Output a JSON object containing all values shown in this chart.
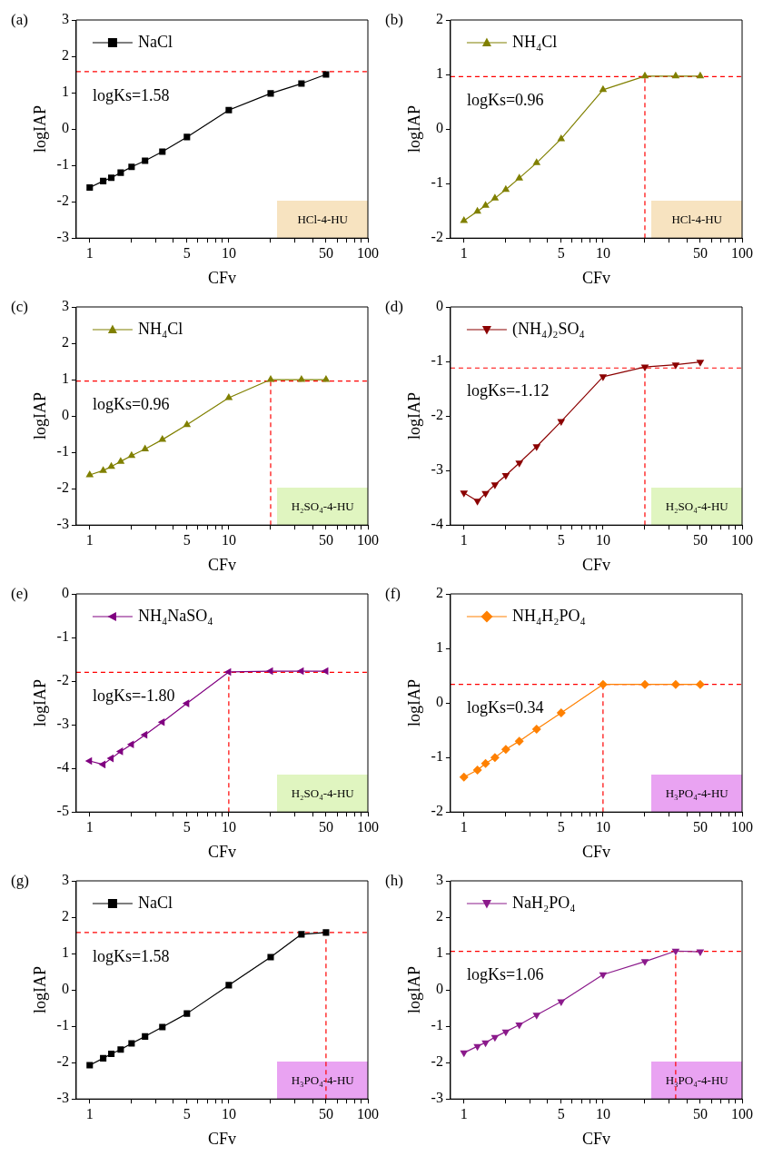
{
  "chart_data": [
    {
      "type": "line",
      "title": "(a)",
      "xlabel": "CFv",
      "ylabel": "logIAP",
      "log": "x",
      "xlim": [
        0.8,
        100
      ],
      "ylim": [
        -3,
        3
      ],
      "xticks": [
        1,
        {
          "value": 2,
          "label": null
        },
        {
          "value": 3,
          "label": null
        },
        {
          "value": 4,
          "label": null
        },
        5,
        {
          "value": 6,
          "label": null
        },
        {
          "value": 7,
          "label": null
        },
        {
          "value": 8,
          "label": null
        },
        {
          "value": 9,
          "label": null
        },
        10,
        {
          "value": 20,
          "label": null
        },
        {
          "value": 30,
          "label": null
        },
        {
          "value": 40,
          "label": null
        },
        50,
        {
          "value": 60,
          "label": null
        },
        {
          "value": 70,
          "label": null
        },
        {
          "value": 80,
          "label": null
        },
        {
          "value": 90,
          "label": null
        },
        100
      ],
      "yticks": [
        -3,
        -2,
        -1,
        0,
        1,
        2,
        3
      ],
      "grid": false,
      "legend": "top left",
      "marker": "square",
      "series": [
        {
          "name": "NaCl",
          "color": "#000000",
          "x": [
            1,
            1.25,
            1.43,
            1.67,
            2,
            2.5,
            3.33,
            5,
            10,
            20,
            33.3,
            50
          ],
          "values": [
            -1.61,
            -1.43,
            -1.34,
            -1.2,
            -1.04,
            -0.87,
            -0.62,
            -0.22,
            0.52,
            0.98,
            1.25,
            1.5
          ]
        }
      ],
      "ref_lines": [
        {
          "axis": "y",
          "value": 1.58,
          "color": "#ff0000",
          "line_style": "dashed"
        }
      ],
      "annotations": [
        "logKs=1.58",
        "HCl-4-HU"
      ]
    },
    {
      "type": "line",
      "title": "(b)",
      "xlabel": "CFv",
      "ylabel": "logIAP",
      "log": "x",
      "xlim": [
        0.8,
        100
      ],
      "ylim": [
        -2,
        2
      ],
      "xticks": [
        1,
        {
          "value": 2,
          "label": null
        },
        {
          "value": 3,
          "label": null
        },
        {
          "value": 4,
          "label": null
        },
        5,
        {
          "value": 6,
          "label": null
        },
        {
          "value": 7,
          "label": null
        },
        {
          "value": 8,
          "label": null
        },
        {
          "value": 9,
          "label": null
        },
        10,
        {
          "value": 20,
          "label": null
        },
        {
          "value": 30,
          "label": null
        },
        {
          "value": 40,
          "label": null
        },
        50,
        {
          "value": 60,
          "label": null
        },
        {
          "value": 70,
          "label": null
        },
        {
          "value": 80,
          "label": null
        },
        {
          "value": 90,
          "label": null
        },
        100
      ],
      "yticks": [
        -2,
        -1,
        0,
        1,
        2
      ],
      "grid": false,
      "legend": "top left",
      "marker": "triangle",
      "series": [
        {
          "name": "NH₄Cl",
          "color": "#808000",
          "x": [
            1,
            1.25,
            1.43,
            1.67,
            2,
            2.5,
            3.33,
            5,
            10,
            20,
            33.3,
            50
          ],
          "values": [
            -1.68,
            -1.51,
            -1.4,
            -1.27,
            -1.11,
            -0.9,
            -0.62,
            -0.18,
            0.72,
            0.97,
            0.97,
            0.97
          ]
        }
      ],
      "ref_lines": [
        {
          "axis": "y",
          "value": 0.96,
          "color": "#ff0000",
          "line_style": "dashed"
        },
        {
          "axis": "x",
          "value": 20,
          "color": "#ff0000",
          "line_style": "dashed"
        }
      ],
      "annotations": [
        "logKs=0.96",
        "HCl-4-HU"
      ]
    },
    {
      "type": "line",
      "title": "(c)",
      "xlabel": "CFv",
      "ylabel": "logIAP",
      "log": "x",
      "xlim": [
        0.8,
        100
      ],
      "ylim": [
        -3,
        3
      ],
      "xticks": [
        1,
        {
          "value": 2,
          "label": null
        },
        {
          "value": 3,
          "label": null
        },
        {
          "value": 4,
          "label": null
        },
        5,
        {
          "value": 6,
          "label": null
        },
        {
          "value": 7,
          "label": null
        },
        {
          "value": 8,
          "label": null
        },
        {
          "value": 9,
          "label": null
        },
        10,
        {
          "value": 20,
          "label": null
        },
        {
          "value": 30,
          "label": null
        },
        {
          "value": 40,
          "label": null
        },
        50,
        {
          "value": 60,
          "label": null
        },
        {
          "value": 70,
          "label": null
        },
        {
          "value": 80,
          "label": null
        },
        {
          "value": 90,
          "label": null
        },
        100
      ],
      "yticks": [
        -3,
        -2,
        -1,
        0,
        1,
        2,
        3
      ],
      "grid": false,
      "legend": "top left",
      "marker": "triangle",
      "series": [
        {
          "name": "NH₄Cl",
          "color": "#808000",
          "x": [
            1,
            1.25,
            1.43,
            1.67,
            2,
            2.5,
            3.33,
            5,
            10,
            20,
            33.3,
            50
          ],
          "values": [
            -1.62,
            -1.5,
            -1.39,
            -1.25,
            -1.09,
            -0.91,
            -0.65,
            -0.24,
            0.5,
            1.0,
            1.0,
            1.0
          ]
        }
      ],
      "ref_lines": [
        {
          "axis": "y",
          "value": 0.96,
          "color": "#ff0000",
          "line_style": "dashed"
        },
        {
          "axis": "x",
          "value": 20,
          "color": "#ff0000",
          "line_style": "dashed"
        }
      ],
      "annotations": [
        "logKs=0.96",
        "H₂SO₄-4-HU"
      ]
    },
    {
      "type": "line",
      "title": "(d)",
      "xlabel": "CFv",
      "ylabel": "logIAP",
      "log": "x",
      "xlim": [
        0.8,
        100
      ],
      "ylim": [
        -4,
        0
      ],
      "xticks": [
        1,
        {
          "value": 2,
          "label": null
        },
        {
          "value": 3,
          "label": null
        },
        {
          "value": 4,
          "label": null
        },
        5,
        {
          "value": 6,
          "label": null
        },
        {
          "value": 7,
          "label": null
        },
        {
          "value": 8,
          "label": null
        },
        {
          "value": 9,
          "label": null
        },
        10,
        {
          "value": 20,
          "label": null
        },
        {
          "value": 30,
          "label": null
        },
        {
          "value": 40,
          "label": null
        },
        50,
        {
          "value": 60,
          "label": null
        },
        {
          "value": 70,
          "label": null
        },
        {
          "value": 80,
          "label": null
        },
        {
          "value": 90,
          "label": null
        },
        100
      ],
      "yticks": [
        -4,
        -3,
        -2,
        -1,
        0
      ],
      "grid": false,
      "legend": "top left",
      "marker": "triangle",
      "series": [
        {
          "name": "(NH₄)₂SO₄",
          "color": "#8b0000",
          "x": [
            1,
            1.25,
            1.43,
            1.67,
            2,
            2.5,
            3.33,
            5,
            10,
            20,
            33.3,
            50
          ],
          "values": [
            -3.41,
            -3.56,
            -3.42,
            -3.26,
            -3.09,
            -2.86,
            -2.56,
            -2.1,
            -1.28,
            -1.1,
            -1.06,
            -1.01
          ]
        }
      ],
      "ref_lines": [
        {
          "axis": "y",
          "value": -1.12,
          "color": "#ff0000",
          "line_style": "dashed"
        },
        {
          "axis": "x",
          "value": 20,
          "color": "#ff0000",
          "line_style": "dashed"
        }
      ],
      "annotations": [
        "logKs=-1.12",
        "H₂SO₄-4-HU"
      ]
    },
    {
      "type": "line",
      "title": "(e)",
      "xlabel": "CFv",
      "ylabel": "logIAP",
      "log": "x",
      "xlim": [
        0.8,
        100
      ],
      "ylim": [
        -5,
        0
      ],
      "xticks": [
        1,
        {
          "value": 2,
          "label": null
        },
        {
          "value": 3,
          "label": null
        },
        {
          "value": 4,
          "label": null
        },
        5,
        {
          "value": 6,
          "label": null
        },
        {
          "value": 7,
          "label": null
        },
        {
          "value": 8,
          "label": null
        },
        {
          "value": 9,
          "label": null
        },
        10,
        {
          "value": 20,
          "label": null
        },
        {
          "value": 30,
          "label": null
        },
        {
          "value": 40,
          "label": null
        },
        50,
        {
          "value": 60,
          "label": null
        },
        {
          "value": 70,
          "label": null
        },
        {
          "value": 80,
          "label": null
        },
        {
          "value": 90,
          "label": null
        },
        100
      ],
      "yticks": [
        -5,
        -4,
        -3,
        -2,
        -1,
        0
      ],
      "grid": false,
      "legend": "top left",
      "marker": "triangle",
      "series": [
        {
          "name": "NH₄NaSO₄",
          "color": "#800080",
          "x": [
            1,
            1.25,
            1.43,
            1.67,
            2,
            2.5,
            3.33,
            5,
            10,
            20,
            33.3,
            50
          ],
          "values": [
            -3.83,
            -3.91,
            -3.77,
            -3.61,
            -3.45,
            -3.23,
            -2.94,
            -2.51,
            -1.79,
            -1.77,
            -1.77,
            -1.77
          ]
        }
      ],
      "ref_lines": [
        {
          "axis": "y",
          "value": -1.8,
          "color": "#ff0000",
          "line_style": "dashed"
        },
        {
          "axis": "x",
          "value": 10,
          "color": "#ff0000",
          "line_style": "dashed"
        }
      ],
      "annotations": [
        "logKs=-1.80",
        "H₂SO₄-4-HU"
      ]
    },
    {
      "type": "line",
      "title": "(f)",
      "xlabel": "CFv",
      "ylabel": "logIAP",
      "log": "x",
      "xlim": [
        0.8,
        100
      ],
      "ylim": [
        -2,
        2
      ],
      "xticks": [
        1,
        {
          "value": 2,
          "label": null
        },
        {
          "value": 3,
          "label": null
        },
        {
          "value": 4,
          "label": null
        },
        5,
        {
          "value": 6,
          "label": null
        },
        {
          "value": 7,
          "label": null
        },
        {
          "value": 8,
          "label": null
        },
        {
          "value": 9,
          "label": null
        },
        10,
        {
          "value": 20,
          "label": null
        },
        {
          "value": 30,
          "label": null
        },
        {
          "value": 40,
          "label": null
        },
        50,
        {
          "value": 60,
          "label": null
        },
        {
          "value": 70,
          "label": null
        },
        {
          "value": 80,
          "label": null
        },
        {
          "value": 90,
          "label": null
        },
        100
      ],
      "yticks": [
        -2,
        -1,
        0,
        1,
        2
      ],
      "grid": false,
      "legend": "top left",
      "marker": "diamond",
      "series": [
        {
          "name": "NH₄H₂PO₄",
          "color": "#ff8000",
          "x": [
            1,
            1.25,
            1.43,
            1.67,
            2,
            2.5,
            3.33,
            5,
            10,
            20,
            33.3,
            50
          ],
          "values": [
            -1.36,
            -1.23,
            -1.11,
            -1.0,
            -0.85,
            -0.7,
            -0.48,
            -0.18,
            0.34,
            0.34,
            0.34,
            0.34
          ]
        }
      ],
      "ref_lines": [
        {
          "axis": "y",
          "value": 0.34,
          "color": "#ff0000",
          "line_style": "dashed"
        },
        {
          "axis": "x",
          "value": 10,
          "color": "#ff0000",
          "line_style": "dashed"
        }
      ],
      "annotations": [
        "logKs=0.34",
        "H₃PO₄-4-HU"
      ]
    },
    {
      "type": "line",
      "title": "(g)",
      "xlabel": "CFv",
      "ylabel": "logIAP",
      "log": "x",
      "xlim": [
        0.8,
        100
      ],
      "ylim": [
        -3,
        3
      ],
      "xticks": [
        1,
        {
          "value": 2,
          "label": null
        },
        {
          "value": 3,
          "label": null
        },
        {
          "value": 4,
          "label": null
        },
        5,
        {
          "value": 6,
          "label": null
        },
        {
          "value": 7,
          "label": null
        },
        {
          "value": 8,
          "label": null
        },
        {
          "value": 9,
          "label": null
        },
        10,
        {
          "value": 20,
          "label": null
        },
        {
          "value": 30,
          "label": null
        },
        {
          "value": 40,
          "label": null
        },
        50,
        {
          "value": 60,
          "label": null
        },
        {
          "value": 70,
          "label": null
        },
        {
          "value": 80,
          "label": null
        },
        {
          "value": 90,
          "label": null
        },
        100
      ],
      "yticks": [
        -3,
        -2,
        -1,
        0,
        1,
        2,
        3
      ],
      "grid": false,
      "legend": "top left",
      "marker": "square",
      "series": [
        {
          "name": "NaCl",
          "color": "#000000",
          "x": [
            1,
            1.25,
            1.43,
            1.67,
            2,
            2.5,
            3.33,
            5,
            10,
            20,
            33.3,
            50
          ],
          "values": [
            -2.07,
            -1.88,
            -1.76,
            -1.64,
            -1.47,
            -1.28,
            -1.02,
            -0.65,
            0.13,
            0.9,
            1.53,
            1.58
          ]
        }
      ],
      "ref_lines": [
        {
          "axis": "y",
          "value": 1.58,
          "color": "#ff0000",
          "line_style": "dashed"
        },
        {
          "axis": "x",
          "value": 50,
          "color": "#ff0000",
          "line_style": "dashed"
        }
      ],
      "annotations": [
        "logKs=1.58",
        "H₃PO₄-4-HU"
      ]
    },
    {
      "type": "line",
      "title": "(h)",
      "xlabel": "CFv",
      "ylabel": "logIAP",
      "log": "x",
      "xlim": [
        0.8,
        100
      ],
      "ylim": [
        -3,
        3
      ],
      "xticks": [
        1,
        {
          "value": 2,
          "label": null
        },
        {
          "value": 3,
          "label": null
        },
        {
          "value": 4,
          "label": null
        },
        5,
        {
          "value": 6,
          "label": null
        },
        {
          "value": 7,
          "label": null
        },
        {
          "value": 8,
          "label": null
        },
        {
          "value": 9,
          "label": null
        },
        10,
        {
          "value": 20,
          "label": null
        },
        {
          "value": 30,
          "label": null
        },
        {
          "value": 40,
          "label": null
        },
        50,
        {
          "value": 60,
          "label": null
        },
        {
          "value": 70,
          "label": null
        },
        {
          "value": 80,
          "label": null
        },
        {
          "value": 90,
          "label": null
        },
        100
      ],
      "yticks": [
        -3,
        -2,
        -1,
        0,
        1,
        2,
        3
      ],
      "grid": false,
      "legend": "top left",
      "marker": "triangle",
      "series": [
        {
          "name": "NaH₂PO₄",
          "color": "#8b1a8b",
          "x": [
            1,
            1.25,
            1.43,
            1.67,
            2,
            2.5,
            3.33,
            5,
            10,
            20,
            33.3,
            50
          ],
          "values": [
            -1.73,
            -1.55,
            -1.45,
            -1.3,
            -1.15,
            -0.96,
            -0.69,
            -0.32,
            0.42,
            0.78,
            1.07,
            1.05
          ]
        }
      ],
      "ref_lines": [
        {
          "axis": "y",
          "value": 1.06,
          "color": "#ff0000",
          "line_style": "dashed"
        },
        {
          "axis": "x",
          "value": 33.3,
          "color": "#ff0000",
          "line_style": "dashed"
        }
      ],
      "annotations": [
        "logKs=1.06",
        "H₃PO₄-4-HU"
      ]
    }
  ]
}
